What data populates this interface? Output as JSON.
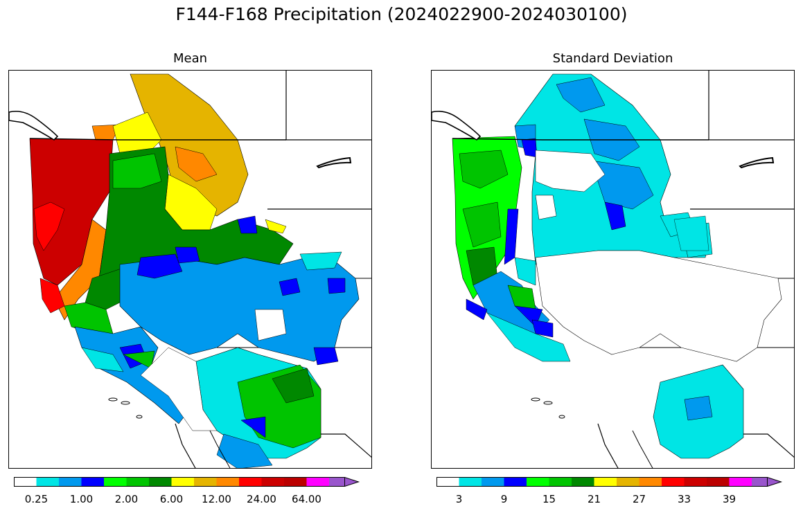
{
  "figure": {
    "title": "F144-F168 Precipitation (2024022900-2024030100)"
  },
  "panels": [
    {
      "id": "mean",
      "title": "Mean",
      "colorbar": {
        "colors": [
          "#ffffff",
          "#00e5e5",
          "#0099ee",
          "#0000ff",
          "#00ff00",
          "#00c400",
          "#008800",
          "#ffff00",
          "#e5b400",
          "#ff8800",
          "#ff0000",
          "#cc0000",
          "#bb0000",
          "#ff00ff",
          "#9955cc"
        ],
        "tick_labels": [
          "0.25",
          "1.00",
          "2.00",
          "6.00",
          "12.00",
          "24.00",
          "64.00"
        ],
        "extend": "max"
      }
    },
    {
      "id": "stddev",
      "title": "Standard Deviation",
      "colorbar": {
        "colors": [
          "#ffffff",
          "#00e5e5",
          "#0099ee",
          "#0000ff",
          "#00ff00",
          "#00c400",
          "#008800",
          "#ffff00",
          "#e5b400",
          "#ff8800",
          "#ff0000",
          "#cc0000",
          "#bb0000",
          "#ff00ff",
          "#9955cc"
        ],
        "tick_labels": [
          "3",
          "9",
          "15",
          "21",
          "27",
          "33",
          "39"
        ],
        "extend": "max"
      }
    }
  ]
}
